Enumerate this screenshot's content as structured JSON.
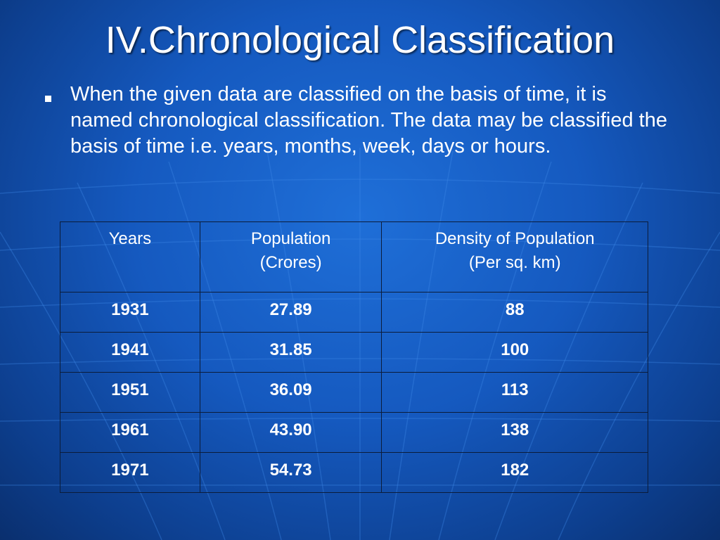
{
  "slide": {
    "title": "IV.Chronological Classification",
    "bullet_text": "When the given data are classified on the basis of time, it is named chronological classification. The data may be classified the basis of time i.e. years, months, week, days or hours.",
    "background_color": "#1559bf"
  },
  "table": {
    "headers": [
      {
        "line1": "Years",
        "line2": ""
      },
      {
        "line1": "Population",
        "line2": "(Crores)"
      },
      {
        "line1": "Density of Population",
        "line2": "(Per sq. km)"
      }
    ],
    "rows": [
      {
        "year": "1931",
        "population": "27.89",
        "density": "88"
      },
      {
        "year": "1941",
        "population": "31.85",
        "density": "100"
      },
      {
        "year": "1951",
        "population": "36.09",
        "density": "113"
      },
      {
        "year": "1961",
        "population": "43.90",
        "density": "138"
      },
      {
        "year": "1971",
        "population": "54.73",
        "density": "182"
      }
    ]
  }
}
